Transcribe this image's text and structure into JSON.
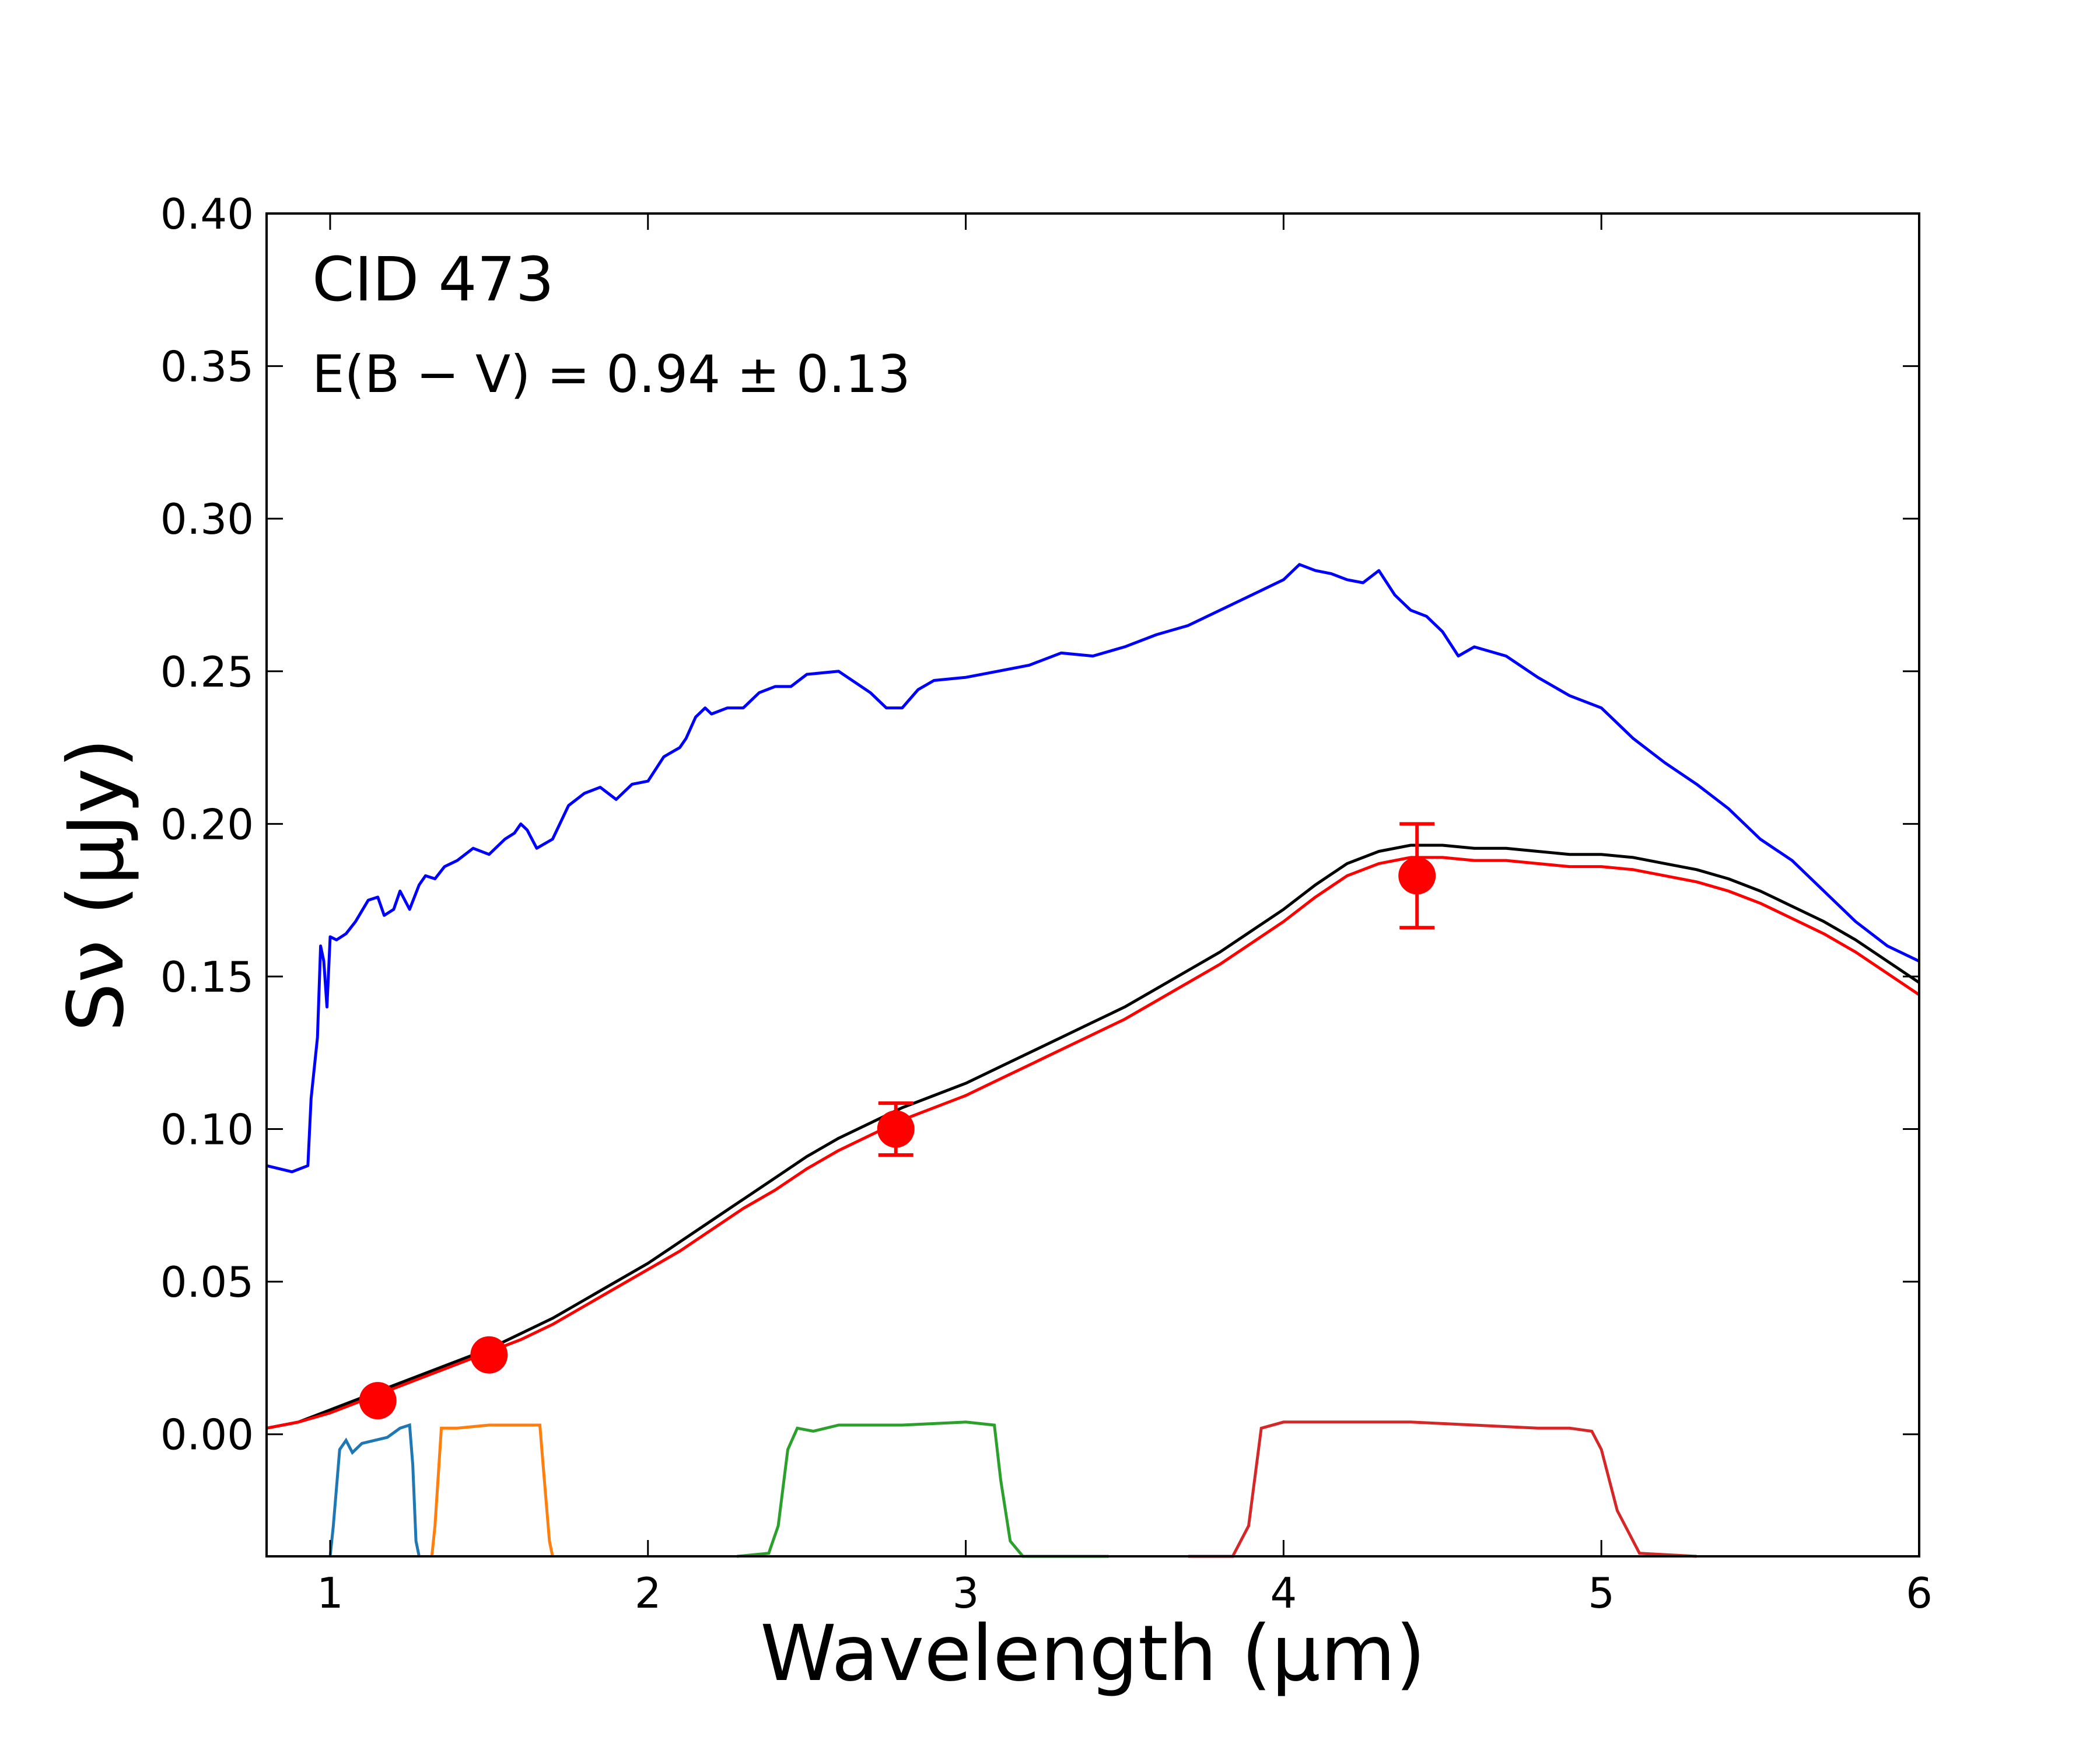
{
  "chart_data": {
    "type": "line",
    "title": "",
    "xlabel": "Wavelength (μm)",
    "ylabel": "Sν (μJy)",
    "xlim": [
      0.8,
      6.0
    ],
    "ylim": [
      -0.04,
      0.4
    ],
    "x_ticks": [
      1,
      2,
      3,
      4,
      5,
      6
    ],
    "x_tick_labels": [
      "1",
      "2",
      "3",
      "4",
      "5",
      "6"
    ],
    "y_ticks": [
      0.0,
      0.05,
      0.1,
      0.15,
      0.2,
      0.25,
      0.3,
      0.35,
      0.4
    ],
    "y_tick_labels": [
      "0.00",
      "0.05",
      "0.10",
      "0.15",
      "0.20",
      "0.25",
      "0.30",
      "0.35",
      "0.40"
    ],
    "grid": false,
    "annotations": {
      "object": "CID 473",
      "ebv": "E(B − V) = 0.94 ± 0.13"
    },
    "series": [
      {
        "color": "#0000ff",
        "x": [
          0.8,
          0.88,
          0.93,
          0.94,
          0.96,
          0.97,
          0.98,
          0.99,
          1.0,
          1.02,
          1.05,
          1.08,
          1.12,
          1.15,
          1.17,
          1.2,
          1.22,
          1.25,
          1.28,
          1.3,
          1.33,
          1.36,
          1.4,
          1.45,
          1.5,
          1.55,
          1.58,
          1.6,
          1.62,
          1.65,
          1.7,
          1.75,
          1.8,
          1.85,
          1.9,
          1.95,
          2.0,
          2.05,
          2.1,
          2.12,
          2.15,
          2.18,
          2.2,
          2.25,
          2.3,
          2.35,
          2.4,
          2.45,
          2.5,
          2.6,
          2.7,
          2.75,
          2.8,
          2.85,
          2.9,
          3.0,
          3.1,
          3.2,
          3.3,
          3.4,
          3.5,
          3.6,
          3.7,
          3.8,
          3.9,
          4.0,
          4.05,
          4.1,
          4.15,
          4.2,
          4.25,
          4.3,
          4.35,
          4.4,
          4.45,
          4.5,
          4.55,
          4.6,
          4.7,
          4.8,
          4.9,
          5.0,
          5.1,
          5.2,
          5.3,
          5.4,
          5.5,
          5.6,
          5.7,
          5.8,
          5.9,
          6.0
        ],
        "y": [
          0.088,
          0.086,
          0.088,
          0.11,
          0.13,
          0.16,
          0.155,
          0.14,
          0.163,
          0.162,
          0.164,
          0.168,
          0.175,
          0.176,
          0.17,
          0.172,
          0.178,
          0.172,
          0.18,
          0.183,
          0.182,
          0.186,
          0.188,
          0.192,
          0.19,
          0.195,
          0.197,
          0.2,
          0.198,
          0.192,
          0.195,
          0.206,
          0.21,
          0.212,
          0.208,
          0.213,
          0.214,
          0.222,
          0.225,
          0.228,
          0.235,
          0.238,
          0.236,
          0.238,
          0.238,
          0.243,
          0.245,
          0.245,
          0.249,
          0.25,
          0.243,
          0.238,
          0.238,
          0.244,
          0.247,
          0.248,
          0.25,
          0.252,
          0.256,
          0.255,
          0.258,
          0.262,
          0.265,
          0.27,
          0.275,
          0.28,
          0.285,
          0.283,
          0.282,
          0.28,
          0.279,
          0.283,
          0.275,
          0.27,
          0.268,
          0.263,
          0.255,
          0.258,
          0.255,
          0.248,
          0.242,
          0.238,
          0.228,
          0.22,
          0.213,
          0.205,
          0.195,
          0.188,
          0.178,
          0.168,
          0.16,
          0.155
        ]
      },
      {
        "color": "#000000",
        "x": [
          0.8,
          0.9,
          1.0,
          1.1,
          1.2,
          1.3,
          1.4,
          1.5,
          1.6,
          1.7,
          1.8,
          1.9,
          2.0,
          2.1,
          2.2,
          2.3,
          2.4,
          2.5,
          2.6,
          2.7,
          2.8,
          2.9,
          3.0,
          3.1,
          3.2,
          3.3,
          3.4,
          3.5,
          3.6,
          3.7,
          3.8,
          3.9,
          4.0,
          4.1,
          4.2,
          4.3,
          4.4,
          4.5,
          4.6,
          4.7,
          4.8,
          4.9,
          5.0,
          5.1,
          5.2,
          5.3,
          5.4,
          5.5,
          5.6,
          5.7,
          5.8,
          5.9,
          6.0
        ],
        "y": [
          0.002,
          0.004,
          0.008,
          0.012,
          0.016,
          0.02,
          0.024,
          0.028,
          0.033,
          0.038,
          0.044,
          0.05,
          0.056,
          0.063,
          0.07,
          0.077,
          0.084,
          0.091,
          0.097,
          0.102,
          0.107,
          0.111,
          0.115,
          0.12,
          0.125,
          0.13,
          0.135,
          0.14,
          0.146,
          0.152,
          0.158,
          0.165,
          0.172,
          0.18,
          0.187,
          0.191,
          0.193,
          0.193,
          0.192,
          0.192,
          0.191,
          0.19,
          0.19,
          0.189,
          0.187,
          0.185,
          0.182,
          0.178,
          0.173,
          0.168,
          0.162,
          0.155,
          0.148
        ]
      },
      {
        "color": "#ff0000",
        "x": [
          0.8,
          0.9,
          1.0,
          1.1,
          1.2,
          1.3,
          1.4,
          1.5,
          1.6,
          1.7,
          1.8,
          1.9,
          2.0,
          2.1,
          2.2,
          2.3,
          2.4,
          2.5,
          2.6,
          2.7,
          2.8,
          2.9,
          3.0,
          3.1,
          3.2,
          3.3,
          3.4,
          3.5,
          3.6,
          3.7,
          3.8,
          3.9,
          4.0,
          4.1,
          4.2,
          4.3,
          4.4,
          4.5,
          4.6,
          4.7,
          4.8,
          4.9,
          5.0,
          5.1,
          5.2,
          5.3,
          5.4,
          5.5,
          5.6,
          5.7,
          5.8,
          5.9,
          6.0
        ],
        "y": [
          0.002,
          0.004,
          0.007,
          0.011,
          0.015,
          0.019,
          0.023,
          0.027,
          0.031,
          0.036,
          0.042,
          0.048,
          0.054,
          0.06,
          0.067,
          0.074,
          0.08,
          0.087,
          0.093,
          0.098,
          0.103,
          0.107,
          0.111,
          0.116,
          0.121,
          0.126,
          0.131,
          0.136,
          0.142,
          0.148,
          0.154,
          0.161,
          0.168,
          0.176,
          0.183,
          0.187,
          0.189,
          0.189,
          0.188,
          0.188,
          0.187,
          0.186,
          0.186,
          0.185,
          0.183,
          0.181,
          0.178,
          0.174,
          0.169,
          0.164,
          0.158,
          0.151,
          0.144
        ]
      }
    ],
    "points": {
      "color": "#ff0000",
      "x": [
        1.15,
        1.5,
        2.78,
        4.42
      ],
      "y": [
        0.011,
        0.026,
        0.1,
        0.183
      ],
      "yerr": [
        0.0,
        0.0,
        0.0085,
        0.017
      ]
    },
    "filters": [
      {
        "color": "#1f77b4",
        "x": [
          1.0,
          1.01,
          1.03,
          1.05,
          1.07,
          1.1,
          1.14,
          1.18,
          1.22,
          1.25,
          1.26,
          1.27,
          1.28
        ],
        "y": [
          -0.04,
          -0.03,
          -0.005,
          -0.002,
          -0.006,
          -0.003,
          -0.002,
          -0.001,
          0.002,
          0.003,
          -0.01,
          -0.035,
          -0.04
        ]
      },
      {
        "color": "#ff7f0e",
        "x": [
          1.32,
          1.33,
          1.35,
          1.4,
          1.5,
          1.6,
          1.66,
          1.67,
          1.69,
          1.7
        ],
        "y": [
          -0.04,
          -0.03,
          0.002,
          0.002,
          0.003,
          0.003,
          0.003,
          -0.01,
          -0.035,
          -0.04
        ]
      },
      {
        "color": "#2ca02c",
        "x": [
          2.28,
          2.38,
          2.41,
          2.44,
          2.47,
          2.52,
          2.6,
          2.8,
          3.0,
          3.09,
          3.11,
          3.14,
          3.18,
          3.3,
          3.45
        ],
        "y": [
          -0.04,
          -0.039,
          -0.03,
          -0.005,
          0.002,
          0.001,
          0.003,
          0.003,
          0.004,
          0.003,
          -0.015,
          -0.035,
          -0.04,
          -0.04,
          -0.04
        ]
      },
      {
        "color": "#d62728",
        "x": [
          3.7,
          3.84,
          3.89,
          3.93,
          4.0,
          4.2,
          4.4,
          4.6,
          4.8,
          4.9,
          4.97,
          5.0,
          5.05,
          5.12,
          5.3
        ],
        "y": [
          -0.04,
          -0.04,
          -0.03,
          0.002,
          0.004,
          0.004,
          0.004,
          0.003,
          0.002,
          0.002,
          0.001,
          -0.005,
          -0.025,
          -0.039,
          -0.04
        ]
      }
    ]
  }
}
